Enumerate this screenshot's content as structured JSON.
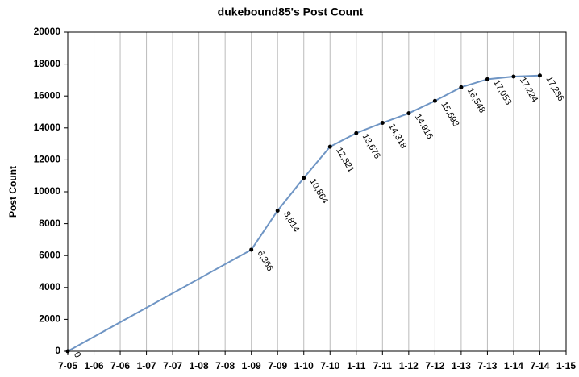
{
  "chart_data": {
    "type": "line",
    "title": "dukebound85's Post Count",
    "y_label": "Post Count",
    "categories": [
      "7-05",
      "1-06",
      "7-06",
      "1-07",
      "7-07",
      "1-08",
      "7-08",
      "1-09",
      "7-09",
      "1-10",
      "7-10",
      "1-11",
      "7-11",
      "1-12",
      "7-12",
      "1-13",
      "7-13",
      "1-14",
      "7-14",
      "1-15"
    ],
    "x": [
      "7-05",
      "1-09",
      "7-09",
      "1-10",
      "7-10",
      "1-11",
      "7-11",
      "1-12",
      "7-12",
      "1-13",
      "7-13",
      "1-14",
      "7-14"
    ],
    "values": [
      0,
      6366,
      8814,
      10864,
      12821,
      13676,
      14318,
      14916,
      15693,
      16548,
      17053,
      17224,
      17286
    ],
    "value_labels": [
      "0",
      "6,366",
      "8,814",
      "10,864",
      "12,821",
      "13,676",
      "14,318",
      "14,916",
      "15,693",
      "16,548",
      "17,053",
      "17,224",
      "17,286"
    ],
    "color": "#6f95c4",
    "ylim": [
      0,
      20000
    ],
    "yticks": [
      0,
      2000,
      4000,
      6000,
      8000,
      10000,
      12000,
      14000,
      16000,
      18000,
      20000
    ],
    "grid": true
  }
}
